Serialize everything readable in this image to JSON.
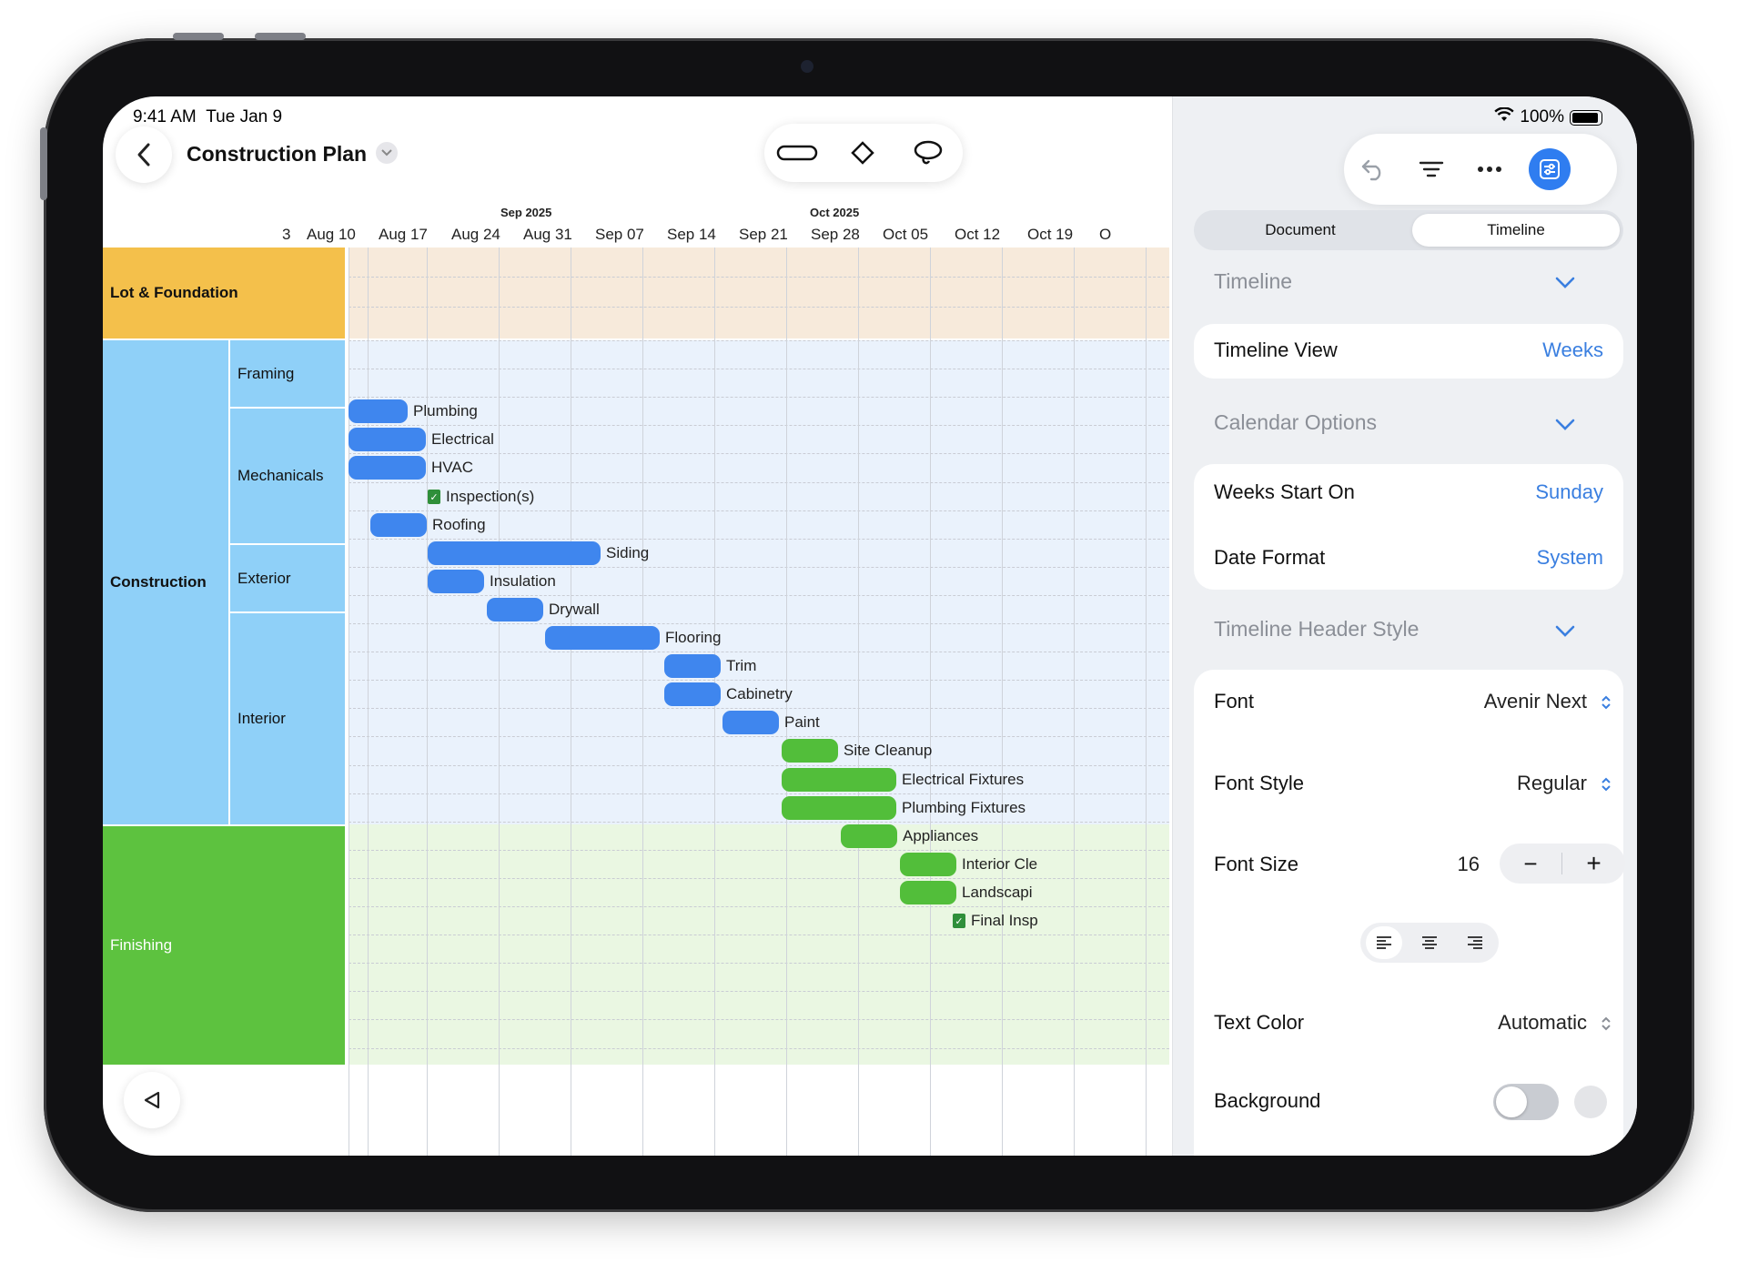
{
  "status": {
    "time": "9:41 AM",
    "date": "Tue Jan 9",
    "battery": "100%"
  },
  "document": {
    "title": "Construction Plan"
  },
  "toolbar": {
    "icons": [
      "task-bar-icon",
      "milestone-diamond-icon",
      "lasso-icon"
    ]
  },
  "timeline_header": {
    "months": [
      "Sep 2025",
      "Oct 2025"
    ],
    "weeks": [
      "3",
      "Aug 10",
      "Aug 17",
      "Aug 24",
      "Aug 31",
      "Sep 07",
      "Sep 14",
      "Sep 21",
      "Sep 28",
      "Oct 05",
      "Oct 12",
      "Oct 19",
      "O"
    ]
  },
  "groups": {
    "lot": "Lot & Foundation",
    "construction": "Construction",
    "finishing": "Finishing",
    "framing": "Framing",
    "mechanicals": "Mechanicals",
    "exterior": "Exterior",
    "interior": "Interior"
  },
  "colors": {
    "lot": "#f4c04b",
    "construction": "#8fd0f8",
    "finishing": "#5dc23f",
    "task_blue": "#3f86ee",
    "task_green": "#52be3a",
    "accent": "#3a7fe0"
  },
  "tasks": [
    {
      "label": "Plumbing",
      "kind": "bar",
      "color": "blue"
    },
    {
      "label": "Electrical",
      "kind": "bar",
      "color": "blue"
    },
    {
      "label": "HVAC",
      "kind": "bar",
      "color": "blue"
    },
    {
      "label": "Inspection(s)",
      "kind": "milestone"
    },
    {
      "label": "Roofing",
      "kind": "bar",
      "color": "blue"
    },
    {
      "label": "Siding",
      "kind": "bar",
      "color": "blue"
    },
    {
      "label": "Insulation",
      "kind": "bar",
      "color": "blue"
    },
    {
      "label": "Drywall",
      "kind": "bar",
      "color": "blue"
    },
    {
      "label": "Flooring",
      "kind": "bar",
      "color": "blue"
    },
    {
      "label": "Trim",
      "kind": "bar",
      "color": "blue"
    },
    {
      "label": "Cabinetry",
      "kind": "bar",
      "color": "blue"
    },
    {
      "label": "Paint",
      "kind": "bar",
      "color": "blue"
    },
    {
      "label": "Site Cleanup",
      "kind": "bar",
      "color": "green"
    },
    {
      "label": "Electrical Fixtures",
      "kind": "bar",
      "color": "green"
    },
    {
      "label": "Plumbing Fixtures",
      "kind": "bar",
      "color": "green"
    },
    {
      "label": "Appliances",
      "kind": "bar",
      "color": "green"
    },
    {
      "label": "Interior Cle",
      "kind": "bar",
      "color": "green"
    },
    {
      "label": "Landscapi",
      "kind": "bar",
      "color": "green"
    },
    {
      "label": "Final Insp",
      "kind": "milestone"
    }
  ],
  "inspector": {
    "tabs": {
      "document": "Document",
      "timeline": "Timeline",
      "selected": "Timeline"
    },
    "sections": {
      "timeline": "Timeline",
      "calendar": "Calendar Options",
      "header_style": "Timeline Header Style"
    },
    "timeline_view": {
      "label": "Timeline View",
      "value": "Weeks"
    },
    "weeks_start": {
      "label": "Weeks Start On",
      "value": "Sunday"
    },
    "date_format": {
      "label": "Date Format",
      "value": "System"
    },
    "font": {
      "label": "Font",
      "value": "Avenir Next"
    },
    "font_style": {
      "label": "Font Style",
      "value": "Regular"
    },
    "font_size": {
      "label": "Font Size",
      "value": "16",
      "minus": "−",
      "plus": "+"
    },
    "text_color": {
      "label": "Text Color",
      "value": "Automatic"
    },
    "background": {
      "label": "Background",
      "enabled": false
    }
  }
}
